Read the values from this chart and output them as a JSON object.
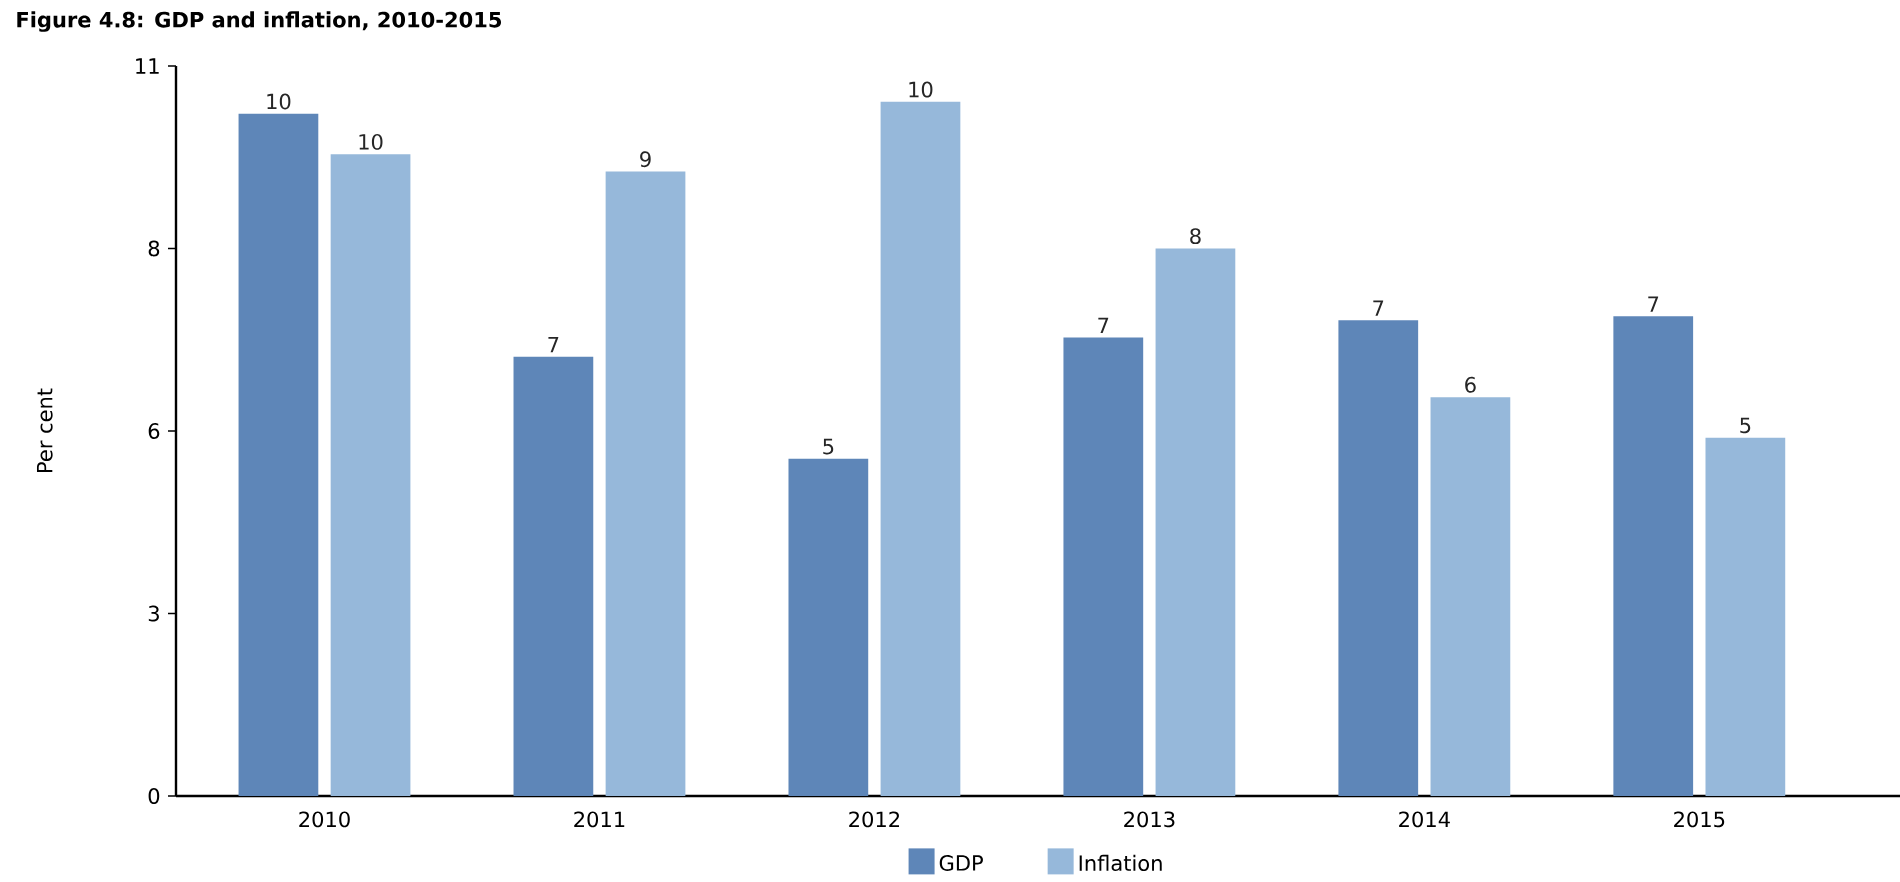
{
  "chart_data": {
    "type": "bar",
    "title": "Figure 4.8: GDP and inflation, 2010-2015",
    "ylabel": "Per cent",
    "categories": [
      "2010",
      "2011",
      "2012",
      "2013",
      "2014",
      "2015"
    ],
    "series": [
      {
        "name": "GDP",
        "color": "#5e86b8",
        "values": [
          10.28,
          6.62,
          5.08,
          6.91,
          7.17,
          7.23
        ],
        "value_labels": [
          "10",
          "7",
          "5",
          "7",
          "7",
          "7"
        ]
      },
      {
        "name": "Inflation",
        "color": "#96b8da",
        "values": [
          9.67,
          9.41,
          10.46,
          8.25,
          6.01,
          5.4
        ],
        "value_labels": [
          "10",
          "9",
          "10",
          "8",
          "6",
          "5"
        ]
      }
    ],
    "ylim": [
      0,
      11
    ],
    "yticks": [
      {
        "value": 0,
        "label": "0"
      },
      {
        "value": 2.75,
        "label": "3"
      },
      {
        "value": 5.5,
        "label": "6"
      },
      {
        "value": 8.25,
        "label": "8"
      },
      {
        "value": 11,
        "label": "11"
      }
    ],
    "legend": "bottom",
    "grid": false
  }
}
